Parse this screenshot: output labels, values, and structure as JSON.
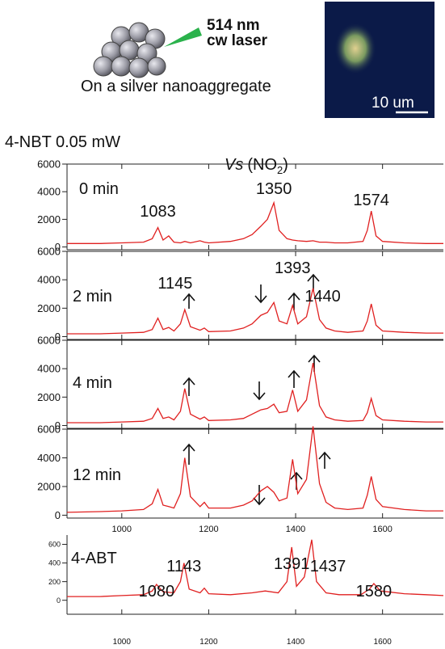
{
  "illustration": {
    "laser_wavelength": "514 nm",
    "laser_type": "cw laser",
    "caption": "On a silver nanoaggregate",
    "scale_bar": "10 um"
  },
  "header": "4-NBT 0.05 mW",
  "chart_data": [
    {
      "type": "line",
      "label": "0 min",
      "vs_label": {
        "symbol": "Vs",
        "group": "(NO",
        "subscript": "2",
        "close": ")"
      },
      "peak_labels": [
        1083,
        1350,
        1574
      ],
      "x": [
        874,
        950,
        1000,
        1050,
        1070,
        1083,
        1095,
        1108,
        1120,
        1135,
        1145,
        1158,
        1180,
        1190,
        1200,
        1250,
        1280,
        1300,
        1320,
        1335,
        1350,
        1362,
        1380,
        1393,
        1405,
        1425,
        1440,
        1455,
        1470,
        1490,
        1520,
        1555,
        1565,
        1574,
        1585,
        1600,
        1650,
        1700,
        1740
      ],
      "values": [
        250,
        250,
        300,
        350,
        600,
        1400,
        500,
        800,
        350,
        300,
        400,
        300,
        450,
        350,
        300,
        400,
        600,
        900,
        1500,
        2000,
        3200,
        1200,
        600,
        500,
        450,
        400,
        450,
        350,
        350,
        300,
        300,
        400,
        1200,
        2600,
        800,
        400,
        300,
        250,
        250
      ],
      "color": "#e02020",
      "xlim": [
        874,
        1740
      ],
      "xticks": [
        1000,
        1200,
        1400,
        1600
      ],
      "show_xtick_labels": false,
      "ylim": [
        -200,
        6000
      ],
      "yticks": [
        0,
        2000,
        4000,
        6000
      ]
    },
    {
      "type": "line",
      "label": "2 min",
      "peak_labels": [
        1145,
        1393,
        1440
      ],
      "x": [
        874,
        950,
        1000,
        1050,
        1070,
        1083,
        1095,
        1108,
        1120,
        1135,
        1145,
        1158,
        1180,
        1190,
        1200,
        1250,
        1280,
        1300,
        1320,
        1335,
        1350,
        1362,
        1380,
        1393,
        1405,
        1425,
        1440,
        1455,
        1470,
        1490,
        1520,
        1555,
        1565,
        1574,
        1585,
        1600,
        1650,
        1700,
        1740
      ],
      "values": [
        200,
        200,
        250,
        300,
        500,
        1300,
        500,
        650,
        400,
        900,
        1900,
        700,
        450,
        600,
        350,
        400,
        600,
        900,
        1500,
        1700,
        2400,
        1100,
        900,
        2200,
        900,
        1400,
        3400,
        1200,
        600,
        400,
        300,
        400,
        1100,
        2300,
        800,
        400,
        300,
        250,
        250
      ],
      "color": "#e02020",
      "xlim": [
        874,
        1740
      ],
      "xticks": [
        1000,
        1200,
        1400,
        1600
      ],
      "show_xtick_labels": false,
      "ylim": [
        -200,
        6000
      ],
      "yticks": [
        0,
        2000,
        4000,
        6000
      ]
    },
    {
      "type": "line",
      "label": "4 min",
      "x": [
        874,
        950,
        1000,
        1050,
        1070,
        1083,
        1095,
        1108,
        1120,
        1135,
        1145,
        1158,
        1180,
        1190,
        1200,
        1250,
        1280,
        1300,
        1320,
        1335,
        1350,
        1362,
        1380,
        1393,
        1405,
        1425,
        1440,
        1455,
        1470,
        1490,
        1520,
        1555,
        1565,
        1574,
        1585,
        1600,
        1650,
        1700,
        1740
      ],
      "values": [
        200,
        200,
        250,
        300,
        500,
        1200,
        500,
        600,
        400,
        1000,
        2600,
        800,
        450,
        600,
        350,
        400,
        500,
        800,
        1100,
        1200,
        1500,
        900,
        1000,
        2500,
        1000,
        1800,
        4400,
        1400,
        600,
        400,
        300,
        350,
        900,
        1900,
        700,
        400,
        300,
        250,
        250
      ],
      "color": "#e02020",
      "xlim": [
        874,
        1740
      ],
      "xticks": [
        1000,
        1200,
        1400,
        1600
      ],
      "show_xtick_labels": false,
      "ylim": [
        -200,
        6000
      ],
      "yticks": [
        0,
        2000,
        4000,
        6000
      ]
    },
    {
      "type": "line",
      "label": "12 min",
      "x": [
        874,
        950,
        1000,
        1050,
        1070,
        1083,
        1095,
        1108,
        1120,
        1135,
        1145,
        1158,
        1180,
        1190,
        1200,
        1250,
        1280,
        1300,
        1320,
        1335,
        1350,
        1362,
        1380,
        1393,
        1405,
        1425,
        1440,
        1455,
        1470,
        1490,
        1520,
        1555,
        1565,
        1574,
        1585,
        1600,
        1650,
        1700,
        1740
      ],
      "values": [
        200,
        250,
        300,
        400,
        800,
        1800,
        700,
        600,
        500,
        1500,
        4000,
        1300,
        600,
        900,
        500,
        500,
        700,
        1000,
        1700,
        2000,
        1600,
        1000,
        1200,
        3900,
        1500,
        2500,
        6200,
        2200,
        900,
        500,
        400,
        500,
        1400,
        2700,
        1100,
        600,
        400,
        300,
        300
      ],
      "color": "#e02020",
      "xlim": [
        874,
        1740
      ],
      "xticks": [
        1000,
        1200,
        1400,
        1600
      ],
      "show_xtick_labels": true,
      "ylim": [
        -200,
        6000
      ],
      "yticks": [
        0,
        2000,
        4000,
        6000
      ]
    },
    {
      "type": "line",
      "label": "4-ABT",
      "peak_labels": [
        1080,
        1143,
        1391,
        1437,
        1580
      ],
      "x": [
        874,
        950,
        1000,
        1050,
        1070,
        1080,
        1095,
        1120,
        1135,
        1143,
        1155,
        1180,
        1190,
        1200,
        1250,
        1300,
        1330,
        1360,
        1380,
        1391,
        1402,
        1420,
        1437,
        1448,
        1470,
        1500,
        1550,
        1570,
        1580,
        1595,
        1650,
        1700,
        1740
      ],
      "values": [
        40,
        40,
        50,
        60,
        100,
        170,
        90,
        80,
        200,
        400,
        120,
        80,
        130,
        70,
        60,
        80,
        100,
        80,
        200,
        570,
        150,
        250,
        650,
        200,
        80,
        60,
        60,
        120,
        180,
        100,
        70,
        60,
        50
      ],
      "color": "#e02020",
      "xlim": [
        874,
        1740
      ],
      "xticks": [
        1000,
        1200,
        1400,
        1600
      ],
      "show_xtick_labels": true,
      "ylim": [
        -150,
        700
      ],
      "yticks": [
        0,
        200,
        400,
        600
      ]
    }
  ]
}
